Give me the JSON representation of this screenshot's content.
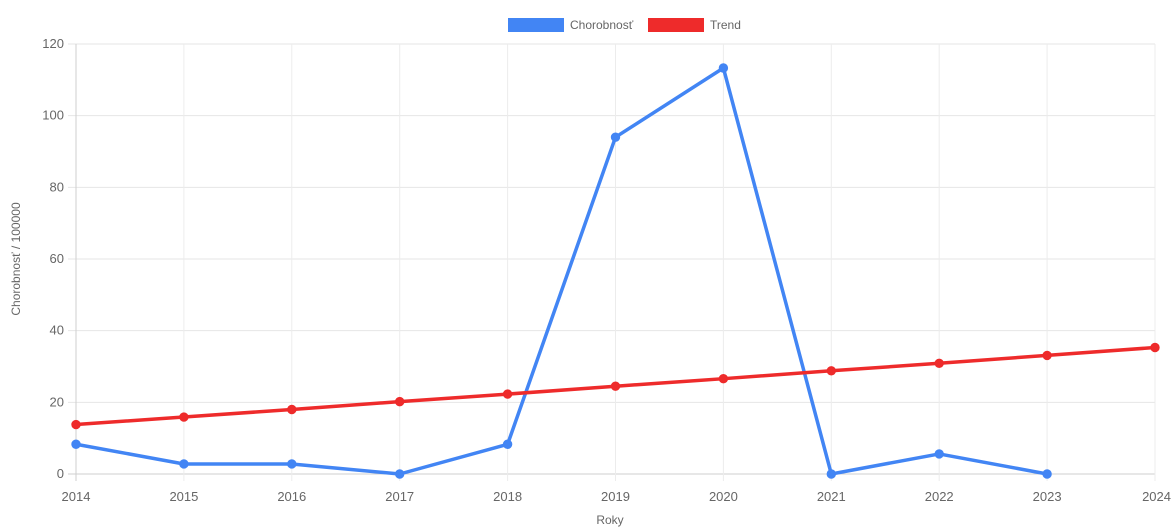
{
  "chart_data": {
    "type": "line",
    "title": "",
    "xlabel": "Roky",
    "ylabel": "Chorobnosť / 100000",
    "x": [
      2014,
      2015,
      2016,
      2017,
      2018,
      2019,
      2020,
      2021,
      2022,
      2023,
      2024
    ],
    "xlim": [
      2014,
      2024
    ],
    "ylim": [
      0,
      120
    ],
    "yticks": [
      0,
      20,
      40,
      60,
      80,
      100,
      120
    ],
    "grid": true,
    "legend": {
      "placement": "top-center"
    },
    "series": [
      {
        "name": "Chorobnosť",
        "color": "#4285f4",
        "values": [
          8.3,
          2.8,
          2.8,
          0,
          8.3,
          94,
          113.3,
          0,
          5.6,
          0,
          null
        ]
      },
      {
        "name": "Trend",
        "color": "#ee2b2b",
        "values": [
          13.8,
          15.9,
          18.0,
          20.2,
          22.3,
          24.5,
          26.6,
          28.8,
          30.9,
          33.1,
          35.3
        ]
      }
    ]
  }
}
